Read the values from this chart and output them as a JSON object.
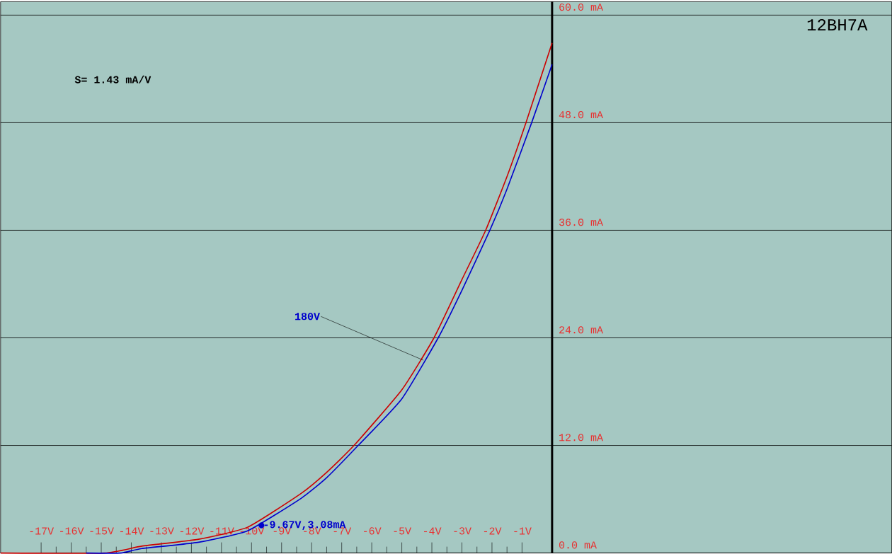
{
  "chart_data": {
    "type": "line",
    "title": "12BH7A",
    "annotations": [
      "S= 1.43 mA/V",
      {
        "text": "180V",
        "x": -4.28,
        "y": 21.5
      },
      {
        "text": "-9.67V,3.08mA",
        "x": -9.67,
        "y": 3.08
      }
    ],
    "series": [
      {
        "color": "#cc0000",
        "x": [
          -18.35,
          -14.9,
          -13.65,
          -11.76,
          -10.12,
          -8.35,
          -7.5,
          -6.59,
          -5,
          -3.93,
          -3,
          -2.21,
          -1.5,
          -0.87,
          0
        ],
        "values": [
          0,
          0,
          0.77,
          1.54,
          2.9,
          6.65,
          9.0,
          12,
          18.2,
          24,
          30.5,
          36,
          42,
          48,
          56.9
        ]
      },
      {
        "color": "#0000cc",
        "x": [
          -15.5,
          -14.35,
          -13.65,
          -11.76,
          -10.12,
          -8.35,
          -7.5,
          -6.45,
          -5,
          -3.79,
          -3,
          -2.07,
          -1.5,
          -0.68,
          0
        ],
        "values": [
          0,
          0,
          0.5,
          1.2,
          2.5,
          6.1,
          8.4,
          12,
          17.2,
          24,
          29.3,
          36,
          40.6,
          48,
          54.5
        ]
      },
      {
        "type": "scatter",
        "marker": "circle",
        "color": "#0000cc",
        "x": [
          -9.67
        ],
        "values": [
          3.08
        ]
      }
    ],
    "xlim": [
      -18.35,
      11.3
    ],
    "ylim": [
      0,
      61.5
    ],
    "xticks": [
      {
        "value": -17,
        "label": "-17V"
      },
      {
        "value": -16,
        "label": "-16V"
      },
      {
        "value": -15,
        "label": "-15V"
      },
      {
        "value": -14,
        "label": "-14V"
      },
      {
        "value": -13,
        "label": "-13V"
      },
      {
        "value": -12,
        "label": "-12V"
      },
      {
        "value": -11,
        "label": "-11V"
      },
      {
        "value": -10,
        "label": "-10V"
      },
      {
        "value": -9,
        "label": "-9V"
      },
      {
        "value": -8,
        "label": "-8V"
      },
      {
        "value": -7,
        "label": "-7V"
      },
      {
        "value": -6,
        "label": "-6V"
      },
      {
        "value": -5,
        "label": "-5V"
      },
      {
        "value": -4,
        "label": "-4V"
      },
      {
        "value": -3,
        "label": "-3V"
      },
      {
        "value": -2,
        "label": "-2V"
      },
      {
        "value": -1,
        "label": "-1V"
      }
    ],
    "yticks": [
      {
        "value": 0,
        "label": "0.0 mA"
      },
      {
        "value": 12,
        "label": "12.0 mA"
      },
      {
        "value": 24,
        "label": "24.0 mA"
      },
      {
        "value": 36,
        "label": "36.0 mA"
      },
      {
        "value": 48,
        "label": "48.0 mA"
      },
      {
        "value": 60,
        "label": "60.0 mA"
      }
    ],
    "grid": "y"
  }
}
